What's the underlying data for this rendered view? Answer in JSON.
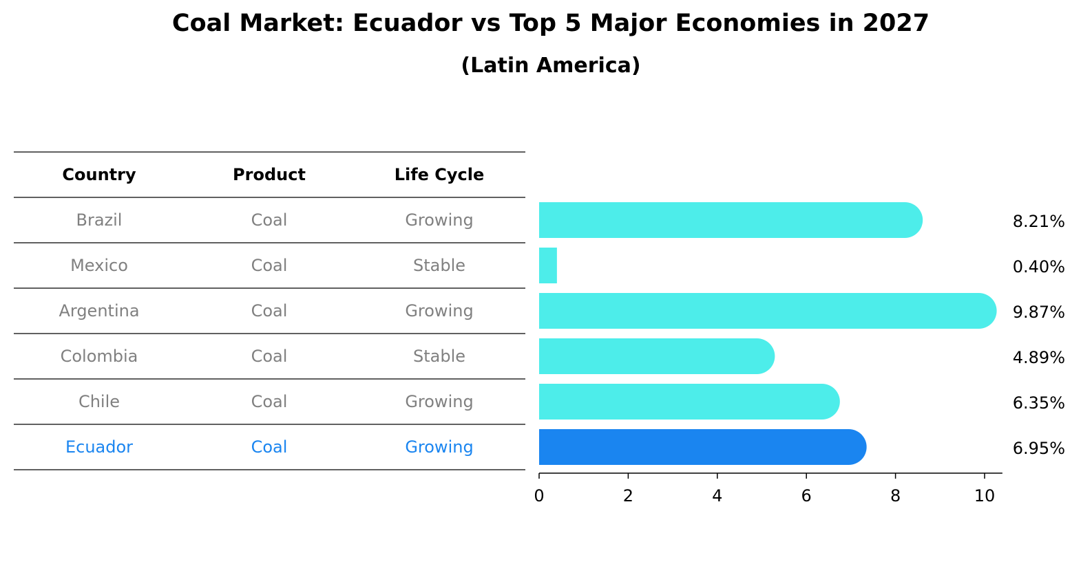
{
  "chart_data": {
    "type": "bar",
    "orientation": "horizontal",
    "title": "Coal Market: Ecuador vs Top 5 Major Economies in 2027",
    "subtitle": "(Latin America)",
    "table": {
      "columns": [
        "Country",
        "Product",
        "Life Cycle"
      ],
      "rows": [
        {
          "country": "Brazil",
          "product": "Coal",
          "life_cycle": "Growing",
          "highlight": false
        },
        {
          "country": "Mexico",
          "product": "Coal",
          "life_cycle": "Stable",
          "highlight": false
        },
        {
          "country": "Argentina",
          "product": "Coal",
          "life_cycle": "Growing",
          "highlight": false
        },
        {
          "country": "Colombia",
          "product": "Coal",
          "life_cycle": "Stable",
          "highlight": false
        },
        {
          "country": "Chile",
          "product": "Coal",
          "life_cycle": "Growing",
          "highlight": false
        },
        {
          "country": "Ecuador",
          "product": "Coal",
          "life_cycle": "Growing",
          "highlight": true
        }
      ]
    },
    "categories": [
      "Brazil",
      "Mexico",
      "Argentina",
      "Colombia",
      "Chile",
      "Ecuador"
    ],
    "values": [
      8.21,
      0.4,
      9.87,
      4.89,
      6.35,
      6.95
    ],
    "value_labels": [
      "8.21%",
      "0.40%",
      "9.87%",
      "4.89%",
      "6.35%",
      "6.95%"
    ],
    "xlim": [
      0,
      10.4
    ],
    "xticks": [
      0,
      2,
      4,
      6,
      8,
      10
    ],
    "xtick_labels": [
      "0",
      "2",
      "4",
      "6",
      "8",
      "10"
    ],
    "grid": false,
    "colors": {
      "bar": "#4dedea",
      "highlight_bar": "#1a85f0",
      "row_text": "#808080",
      "highlight_text": "#1a85f0",
      "lines": "#000000"
    }
  }
}
